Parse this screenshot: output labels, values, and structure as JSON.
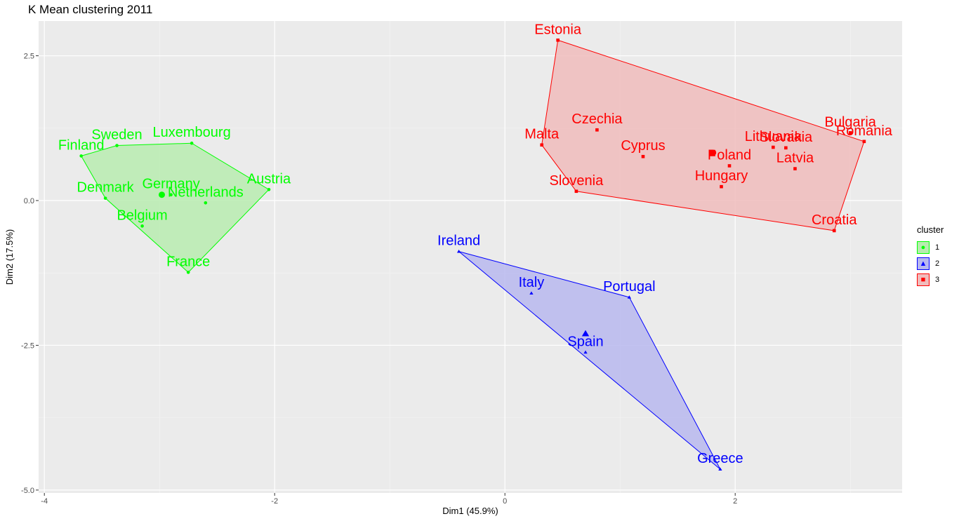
{
  "chart_data": {
    "type": "scatter",
    "title": "K Mean clustering 2011",
    "xlabel": "Dim1 (45.9%)",
    "ylabel": "Dim2 (17.5%)",
    "xlim": [
      -4.05,
      3.45
    ],
    "ylim": [
      -5.05,
      3.1
    ],
    "xticks": [
      -4,
      -2,
      0,
      2
    ],
    "xtick_labels": [
      "-4",
      "-2",
      "0",
      "2"
    ],
    "yticks": [
      -5,
      -2.5,
      0,
      2.5
    ],
    "ytick_labels": [
      "-5.0",
      "-2.5",
      "0.0",
      "2.5"
    ],
    "grid": true,
    "legend": {
      "title": "cluster",
      "position": "right"
    },
    "clusters": [
      {
        "name": "1",
        "color": "#00ff00",
        "fill": "#b8ecb0",
        "shape": "circle",
        "centroid": [
          -2.98,
          0.1
        ],
        "hull": [
          "Finland",
          "Sweden",
          "Luxembourg",
          "Austria",
          "France",
          "Denmark"
        ],
        "points": [
          {
            "label": "Finland",
            "x": -3.68,
            "y": 0.77
          },
          {
            "label": "Sweden",
            "x": -3.37,
            "y": 0.95
          },
          {
            "label": "Luxembourg",
            "x": -2.72,
            "y": 0.99
          },
          {
            "label": "Austria",
            "x": -2.05,
            "y": 0.19
          },
          {
            "label": "Denmark",
            "x": -3.47,
            "y": 0.04
          },
          {
            "label": "Germany",
            "x": -2.9,
            "y": 0.1
          },
          {
            "label": "Netherlands",
            "x": -2.6,
            "y": -0.04
          },
          {
            "label": "Belgium",
            "x": -3.15,
            "y": -0.44
          },
          {
            "label": "France",
            "x": -2.75,
            "y": -1.24
          }
        ]
      },
      {
        "name": "2",
        "color": "#0000ff",
        "fill": "#b8b8ef",
        "shape": "triangle",
        "centroid": [
          0.7,
          -2.3
        ],
        "hull": [
          "Ireland",
          "Portugal",
          "Greece"
        ],
        "points": [
          {
            "label": "Ireland",
            "x": -0.4,
            "y": -0.88
          },
          {
            "label": "Italy",
            "x": 0.23,
            "y": -1.6
          },
          {
            "label": "Portugal",
            "x": 1.08,
            "y": -1.67
          },
          {
            "label": "Spain",
            "x": 0.7,
            "y": -2.62
          },
          {
            "label": "Greece",
            "x": 1.87,
            "y": -4.64
          }
        ]
      },
      {
        "name": "3",
        "color": "#ff0000",
        "fill": "#f0bcbc",
        "shape": "square",
        "centroid": [
          1.8,
          0.82
        ],
        "hull": [
          "Estonia",
          "Romania",
          "Croatia",
          "Slovenia",
          "Malta"
        ],
        "points": [
          {
            "label": "Estonia",
            "x": 0.46,
            "y": 2.77
          },
          {
            "label": "Czechia",
            "x": 0.8,
            "y": 1.22
          },
          {
            "label": "Malta",
            "x": 0.32,
            "y": 0.96
          },
          {
            "label": "Cyprus",
            "x": 1.2,
            "y": 0.76
          },
          {
            "label": "Slovenia",
            "x": 0.62,
            "y": 0.16
          },
          {
            "label": "Poland",
            "x": 1.95,
            "y": 0.6
          },
          {
            "label": "Hungary",
            "x": 1.88,
            "y": 0.24
          },
          {
            "label": "Lithuania",
            "x": 2.33,
            "y": 0.92
          },
          {
            "label": "Slovakia",
            "x": 2.44,
            "y": 0.91
          },
          {
            "label": "Latvia",
            "x": 2.52,
            "y": 0.55
          },
          {
            "label": "Bulgaria",
            "x": 3.0,
            "y": 1.17
          },
          {
            "label": "Romania",
            "x": 3.12,
            "y": 1.02
          },
          {
            "label": "Croatia",
            "x": 2.86,
            "y": -0.52
          }
        ]
      }
    ]
  }
}
